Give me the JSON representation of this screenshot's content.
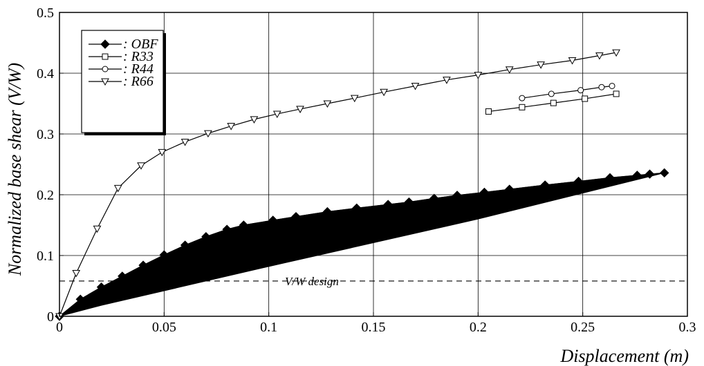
{
  "chart_data": {
    "type": "line",
    "xlabel": "Displacement (m)",
    "ylabel": "Normalized base shear (V/W)",
    "xlim": [
      0,
      0.3
    ],
    "ylim": [
      0,
      0.5
    ],
    "x_ticks": [
      0,
      0.05,
      0.1,
      0.15,
      0.2,
      0.25,
      0.3
    ],
    "y_ticks": [
      0,
      0.1,
      0.2,
      0.3,
      0.4,
      0.5
    ],
    "x_tick_labels": [
      "0",
      "0.05",
      "0.1",
      "0.15",
      "0.2",
      "0.25",
      "0.3"
    ],
    "y_tick_labels": [
      "0",
      "0.1",
      "0.2",
      "0.3",
      "0.4",
      "0.5"
    ],
    "grid": true,
    "legend_position": "top-left",
    "series": [
      {
        "name": ": OBF",
        "marker": "filled-diamond",
        "color": "#000000",
        "x": [
          0,
          0.01,
          0.02,
          0.03,
          0.04,
          0.05,
          0.06,
          0.07,
          0.08,
          0.088,
          0.102,
          0.113,
          0.128,
          0.142,
          0.157,
          0.167,
          0.179,
          0.19,
          0.203,
          0.215,
          0.232,
          0.248,
          0.263,
          0.276,
          0.282,
          0.289
        ],
        "y": [
          0,
          0.028,
          0.048,
          0.066,
          0.084,
          0.101,
          0.117,
          0.131,
          0.143,
          0.15,
          0.158,
          0.164,
          0.172,
          0.178,
          0.184,
          0.188,
          0.194,
          0.199,
          0.204,
          0.209,
          0.216,
          0.222,
          0.228,
          0.232,
          0.234,
          0.236
        ],
        "return_x": [
          0.289,
          0.2,
          0.1,
          0.02,
          0
        ],
        "return_y": [
          0.236,
          0.16,
          0.082,
          0.018,
          0
        ]
      },
      {
        "name": ": R33",
        "marker": "open-square",
        "color": "#000000",
        "x": [
          0.205,
          0.221,
          0.236,
          0.251,
          0.266
        ],
        "y": [
          0.337,
          0.344,
          0.351,
          0.358,
          0.366
        ]
      },
      {
        "name": ": R44",
        "marker": "open-circle",
        "color": "#000000",
        "x": [
          0.221,
          0.235,
          0.249,
          0.259,
          0.264
        ],
        "y": [
          0.359,
          0.366,
          0.372,
          0.377,
          0.379
        ]
      },
      {
        "name": ": R66",
        "marker": "open-triangle-down",
        "color": "#000000",
        "x": [
          0,
          0.008,
          0.018,
          0.028,
          0.039,
          0.049,
          0.06,
          0.071,
          0.082,
          0.093,
          0.104,
          0.115,
          0.128,
          0.141,
          0.155,
          0.17,
          0.185,
          0.2,
          0.215,
          0.23,
          0.245,
          0.258,
          0.266
        ],
        "y": [
          0,
          0.071,
          0.144,
          0.211,
          0.248,
          0.27,
          0.287,
          0.301,
          0.313,
          0.324,
          0.333,
          0.341,
          0.35,
          0.359,
          0.369,
          0.379,
          0.389,
          0.397,
          0.406,
          0.414,
          0.421,
          0.429,
          0.434
        ]
      }
    ],
    "reference_line": {
      "label": "V/W design",
      "y": 0.058,
      "style": "dashed"
    }
  }
}
